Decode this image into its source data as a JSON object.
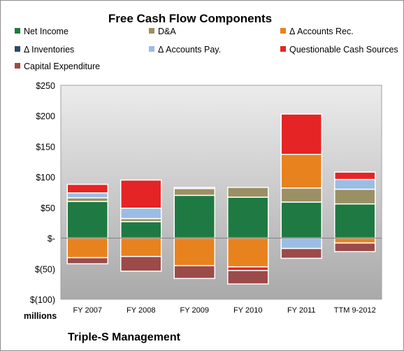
{
  "chart_data": {
    "type": "bar",
    "stacked": true,
    "title": "Free Cash Flow Components",
    "unit_label": "millions",
    "footer": "Triple-S Management",
    "categories": [
      "FY 2007",
      "FY 2008",
      "FY 2009",
      "FY 2010",
      "FY 2011",
      "TTM 9-2012"
    ],
    "ylim": [
      -100,
      250
    ],
    "yticks": [
      -100,
      -50,
      0,
      50,
      100,
      150,
      200,
      250
    ],
    "ytick_labels": [
      "$(100)",
      "$(50)",
      "$-",
      "$50",
      "$100",
      "$150",
      "$200",
      "$250"
    ],
    "grid": false,
    "legend_position": "top",
    "series": [
      {
        "name": "Net Income",
        "color": "#1e7a42",
        "values": [
          60,
          27,
          70,
          67,
          59,
          56
        ]
      },
      {
        "name": "D&A",
        "color": "#9b9064",
        "values": [
          6,
          5,
          11,
          16,
          23,
          24
        ]
      },
      {
        "name": "Δ Accounts Rec.",
        "color": "#e8821e",
        "values": [
          -32,
          -30,
          -45,
          -47,
          55,
          -8
        ]
      },
      {
        "name": "Δ Inventories",
        "color": "#2a4a6b",
        "values": [
          0,
          0,
          0,
          0,
          0,
          0
        ]
      },
      {
        "name": "Δ Accounts Pay.",
        "color": "#9cbde3",
        "values": [
          8,
          17,
          2,
          0,
          -17,
          16
        ]
      },
      {
        "name": "Questionable Cash Sources",
        "color": "#e52425",
        "values": [
          14,
          46,
          0,
          -6,
          66,
          12
        ]
      },
      {
        "name": "Capital Expenditure",
        "color": "#9c4a4a",
        "values": [
          -10,
          -24,
          -21,
          -22,
          -16,
          -14
        ]
      }
    ]
  }
}
